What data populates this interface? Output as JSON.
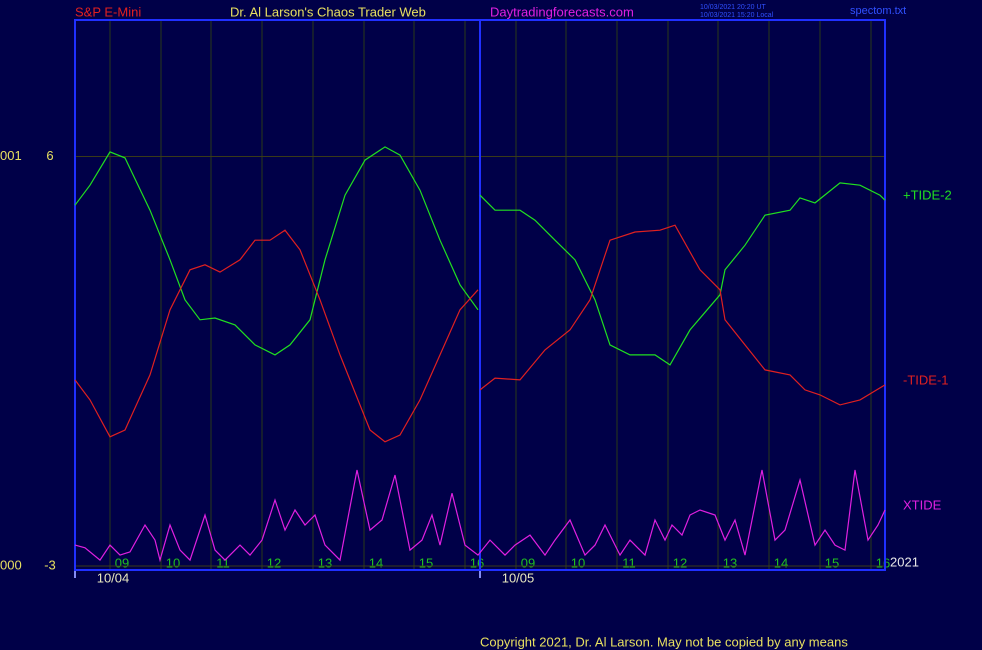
{
  "chart_data": {
    "type": "line",
    "symbol": "S&P E-Mini",
    "title": "Dr. Al Larson's Chaos Trader Web",
    "site": "Daytradingforecasts.com",
    "timestamps": [
      "10/03/2021 20:20 UT",
      "10/03/2021 15:20 Local"
    ],
    "file": "spectom.txt",
    "year": "2021",
    "copyright": "Copyright 2021, Dr. Al Larson. May not be copied by any means",
    "price_labels": [
      "001",
      "000"
    ],
    "xlim": [
      0,
      810
    ],
    "ylim": [
      -3,
      9
    ],
    "yticks": [
      6,
      -3
    ],
    "xticks": [
      {
        "value": 35,
        "label": "09"
      },
      {
        "value": 86,
        "label": "10"
      },
      {
        "value": 136,
        "label": "11"
      },
      {
        "value": 187,
        "label": "12"
      },
      {
        "value": 238,
        "label": "13"
      },
      {
        "value": 289,
        "label": "14"
      },
      {
        "value": 339,
        "label": "15"
      },
      {
        "value": 390,
        "label": "16"
      },
      {
        "value": 441,
        "label": "09"
      },
      {
        "value": 491,
        "label": "10"
      },
      {
        "value": 542,
        "label": "11"
      },
      {
        "value": 593,
        "label": "12"
      },
      {
        "value": 643,
        "label": "13"
      },
      {
        "value": 694,
        "label": "14"
      },
      {
        "value": 745,
        "label": "15"
      },
      {
        "value": 796,
        "label": "16"
      }
    ],
    "day_breaks": [
      {
        "value": 0,
        "label": "10/04"
      },
      {
        "value": 405,
        "label": "10/05"
      }
    ],
    "grid": true,
    "series": [
      {
        "name": "+TIDE-2",
        "color": "#20e020",
        "x": [
          0,
          15,
          35,
          50,
          75,
          95,
          110,
          125,
          140,
          160,
          180,
          200,
          215,
          235,
          250,
          270,
          290,
          310,
          325,
          345,
          365,
          385,
          403,
          404,
          405,
          420,
          445,
          460,
          480,
          500,
          520,
          535,
          555,
          580,
          595,
          615,
          645,
          650,
          670,
          690,
          715,
          725,
          740,
          765,
          785,
          805,
          810
        ],
        "values": [
          4.93,
          5.37,
          6.1,
          5.97,
          4.82,
          3.73,
          2.85,
          2.41,
          2.45,
          2.3,
          1.86,
          1.64,
          1.86,
          2.41,
          3.73,
          5.15,
          5.92,
          6.21,
          6.03,
          5.26,
          4.16,
          3.18,
          2.63,
          null,
          5.15,
          4.82,
          4.82,
          4.6,
          4.16,
          3.73,
          2.85,
          1.86,
          1.64,
          1.64,
          1.42,
          2.19,
          2.96,
          3.51,
          4.05,
          4.71,
          4.82,
          5.09,
          4.98,
          5.42,
          5.37,
          5.15,
          5.04
        ]
      },
      {
        "name": "-TIDE-1",
        "color": "#e02020",
        "x": [
          0,
          15,
          35,
          50,
          75,
          95,
          115,
          130,
          145,
          165,
          180,
          195,
          210,
          225,
          245,
          265,
          295,
          310,
          325,
          345,
          365,
          385,
          403,
          404,
          405,
          420,
          445,
          470,
          495,
          515,
          535,
          560,
          585,
          600,
          625,
          645,
          650,
          670,
          690,
          715,
          730,
          745,
          765,
          785,
          810
        ],
        "values": [
          1.09,
          0.65,
          -0.16,
          -0.01,
          1.2,
          2.63,
          3.51,
          3.62,
          3.46,
          3.73,
          4.16,
          4.16,
          4.38,
          3.95,
          2.85,
          1.64,
          -0.01,
          -0.27,
          -0.12,
          0.65,
          1.64,
          2.63,
          3.07,
          null,
          0.87,
          1.13,
          1.09,
          1.75,
          2.19,
          2.85,
          4.16,
          4.34,
          4.38,
          4.49,
          3.51,
          3.07,
          2.41,
          1.86,
          1.31,
          1.2,
          0.87,
          0.76,
          0.54,
          0.65,
          0.98
        ]
      },
      {
        "name": "XTIDE",
        "color": "#e020e0",
        "x": [
          0,
          10,
          25,
          35,
          45,
          55,
          70,
          80,
          85,
          95,
          105,
          115,
          130,
          140,
          150,
          165,
          175,
          187,
          200,
          210,
          220,
          230,
          240,
          250,
          265,
          282,
          295,
          307,
          320,
          335,
          347,
          357,
          365,
          377,
          390,
          403,
          415,
          430,
          440,
          455,
          470,
          480,
          495,
          510,
          520,
          530,
          545,
          555,
          570,
          580,
          590,
          597,
          607,
          615,
          625,
          640,
          650,
          660,
          670,
          687,
          700,
          710,
          725,
          740,
          750,
          760,
          770,
          780,
          793,
          803,
          810
        ],
        "values": [
          -2.54,
          -2.6,
          -2.87,
          -2.54,
          -2.76,
          -2.69,
          -2.1,
          -2.43,
          -2.87,
          -2.1,
          -2.65,
          -2.87,
          -1.88,
          -2.65,
          -2.87,
          -2.54,
          -2.76,
          -2.43,
          -1.55,
          -2.21,
          -1.77,
          -2.1,
          -1.88,
          -2.54,
          -2.87,
          -0.89,
          -2.21,
          -1.99,
          -1.0,
          -2.65,
          -2.43,
          -1.88,
          -2.54,
          -1.4,
          -2.54,
          -2.76,
          -2.43,
          -2.76,
          -2.54,
          -2.32,
          -2.76,
          -2.43,
          -1.99,
          -2.76,
          -2.54,
          -2.1,
          -2.76,
          -2.43,
          -2.76,
          -1.99,
          -2.43,
          -2.1,
          -2.32,
          -1.88,
          -1.77,
          -1.88,
          -2.43,
          -1.99,
          -2.76,
          -0.89,
          -2.43,
          -2.21,
          -1.11,
          -2.54,
          -2.21,
          -2.54,
          -2.65,
          -0.89,
          -2.43,
          -2.1,
          -1.77
        ]
      }
    ]
  }
}
